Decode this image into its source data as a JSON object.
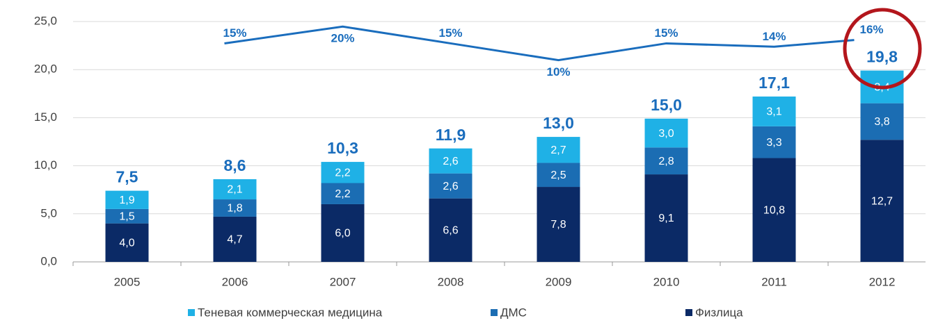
{
  "chart_data": {
    "type": "stacked_bar",
    "categories": [
      "2005",
      "2006",
      "2007",
      "2008",
      "2009",
      "2010",
      "2011",
      "2012"
    ],
    "series": [
      {
        "name": "Теневая коммерческая медицина",
        "color": "#1fb1e6",
        "values": [
          1.9,
          2.1,
          2.2,
          2.6,
          2.7,
          3.0,
          3.1,
          3.4
        ],
        "value_labels": [
          "1,9",
          "2,1",
          "2,2",
          "2,6",
          "2,7",
          "3,0",
          "3,1",
          "3,4"
        ]
      },
      {
        "name": "ДМС",
        "color": "#1b6db3",
        "values": [
          1.5,
          1.8,
          2.2,
          2.6,
          2.5,
          2.8,
          3.3,
          3.8
        ],
        "value_labels": [
          "1,5",
          "1,8",
          "2,2",
          "2,6",
          "2,5",
          "2,8",
          "3,3",
          "3,8"
        ]
      },
      {
        "name": "Физлица",
        "color": "#0b2a66",
        "values": [
          4.0,
          4.7,
          6.0,
          6.6,
          7.8,
          9.1,
          10.8,
          12.7
        ],
        "value_labels": [
          "4,0",
          "4,7",
          "6,0",
          "6,6",
          "7,8",
          "9,1",
          "10,8",
          "12,7"
        ]
      }
    ],
    "totals": {
      "values": [
        7.5,
        8.6,
        10.3,
        11.9,
        13.0,
        15.0,
        17.1,
        19.8
      ],
      "value_labels": [
        "7,5",
        "8,6",
        "10,3",
        "11,9",
        "13,0",
        "15,0",
        "17,1",
        "19,8"
      ]
    },
    "growth_line": {
      "axis": "y2",
      "color": "#1a6dbd",
      "values": [
        null,
        15,
        20,
        15,
        10,
        15,
        14,
        16
      ],
      "value_labels": [
        null,
        "15%",
        "20%",
        "15%",
        "10%",
        "15%",
        "14%",
        "16%"
      ]
    },
    "ylim": [
      0,
      25
    ],
    "yticks": [
      {
        "value": 0,
        "label": "0,0"
      },
      {
        "value": 5,
        "label": "5,0"
      },
      {
        "value": 10,
        "label": "10,0"
      },
      {
        "value": 15,
        "label": "15,0"
      },
      {
        "value": 20,
        "label": "20,0"
      },
      {
        "value": 25,
        "label": "25,0"
      }
    ],
    "y2lim": [
      -50,
      21.5
    ],
    "grid": true
  }
}
